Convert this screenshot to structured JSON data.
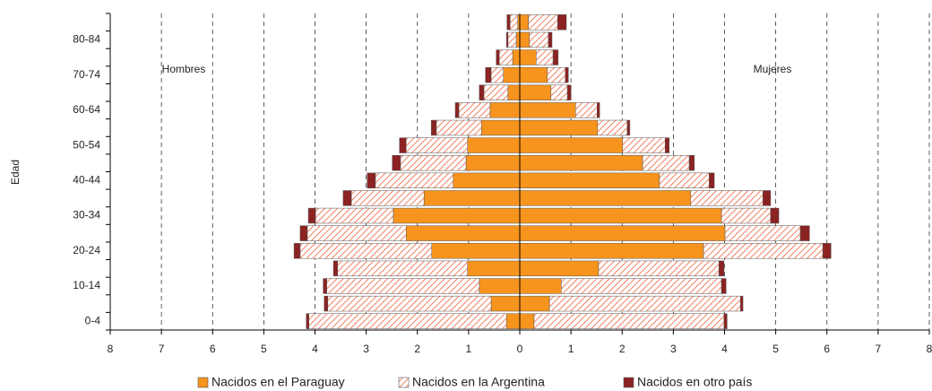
{
  "chart_data": {
    "type": "pyramid",
    "y_label": "Edad",
    "left_label": "Hombres",
    "right_label": "Mujeres",
    "categories": [
      "0-4",
      null,
      "10-14",
      null,
      "20-24",
      null,
      "30-34",
      null,
      "40-44",
      null,
      "50-54",
      null,
      "60-64",
      null,
      "70-74",
      null,
      "80-84",
      null
    ],
    "xlim": [
      -8,
      8
    ],
    "xticks": [
      {
        "value": -8,
        "label": "8"
      },
      {
        "value": -7,
        "label": "7"
      },
      {
        "value": -6,
        "label": "6"
      },
      {
        "value": -5,
        "label": "5"
      },
      {
        "value": -4,
        "label": "4"
      },
      {
        "value": -3,
        "label": "3"
      },
      {
        "value": -2,
        "label": "2"
      },
      {
        "value": -1,
        "label": "1"
      },
      0,
      1,
      2,
      3,
      4,
      5,
      6,
      7,
      8
    ],
    "grid": true,
    "series": [
      {
        "name": "Nacidos en el Paraguay",
        "color": "#f7941d",
        "pattern": "solid",
        "left": [
          0.26,
          0.56,
          0.79,
          1.02,
          1.72,
          2.22,
          2.47,
          1.87,
          1.3,
          1.05,
          1.02,
          0.75,
          0.58,
          0.23,
          0.32,
          0.14,
          0.07,
          0.04
        ],
        "right": [
          0.28,
          0.58,
          0.81,
          1.54,
          3.59,
          4.01,
          3.94,
          3.34,
          2.73,
          2.4,
          2.01,
          1.52,
          1.09,
          0.61,
          0.54,
          0.32,
          0.19,
          0.17
        ]
      },
      {
        "name": "Nacidos en la Argentina",
        "color": "#f08a6c",
        "pattern": "hatch",
        "left": [
          3.86,
          3.19,
          2.98,
          2.54,
          2.57,
          1.93,
          1.52,
          1.42,
          1.52,
          1.28,
          1.2,
          0.88,
          0.61,
          0.47,
          0.24,
          0.26,
          0.16,
          0.15
        ],
        "right": [
          3.71,
          3.73,
          3.13,
          2.35,
          2.33,
          1.47,
          0.96,
          1.41,
          0.97,
          0.91,
          0.83,
          0.58,
          0.42,
          0.32,
          0.35,
          0.33,
          0.37,
          0.57
        ]
      },
      {
        "name": "Nacidos en otro país",
        "color": "#8b2323",
        "pattern": "solid",
        "left": [
          0.05,
          0.07,
          0.07,
          0.08,
          0.12,
          0.14,
          0.14,
          0.16,
          0.16,
          0.16,
          0.13,
          0.1,
          0.07,
          0.09,
          0.11,
          0.06,
          0.03,
          0.06
        ],
        "right": [
          0.06,
          0.05,
          0.09,
          0.1,
          0.16,
          0.18,
          0.16,
          0.15,
          0.1,
          0.1,
          0.08,
          0.05,
          0.05,
          0.07,
          0.06,
          0.1,
          0.07,
          0.17
        ]
      }
    ]
  }
}
